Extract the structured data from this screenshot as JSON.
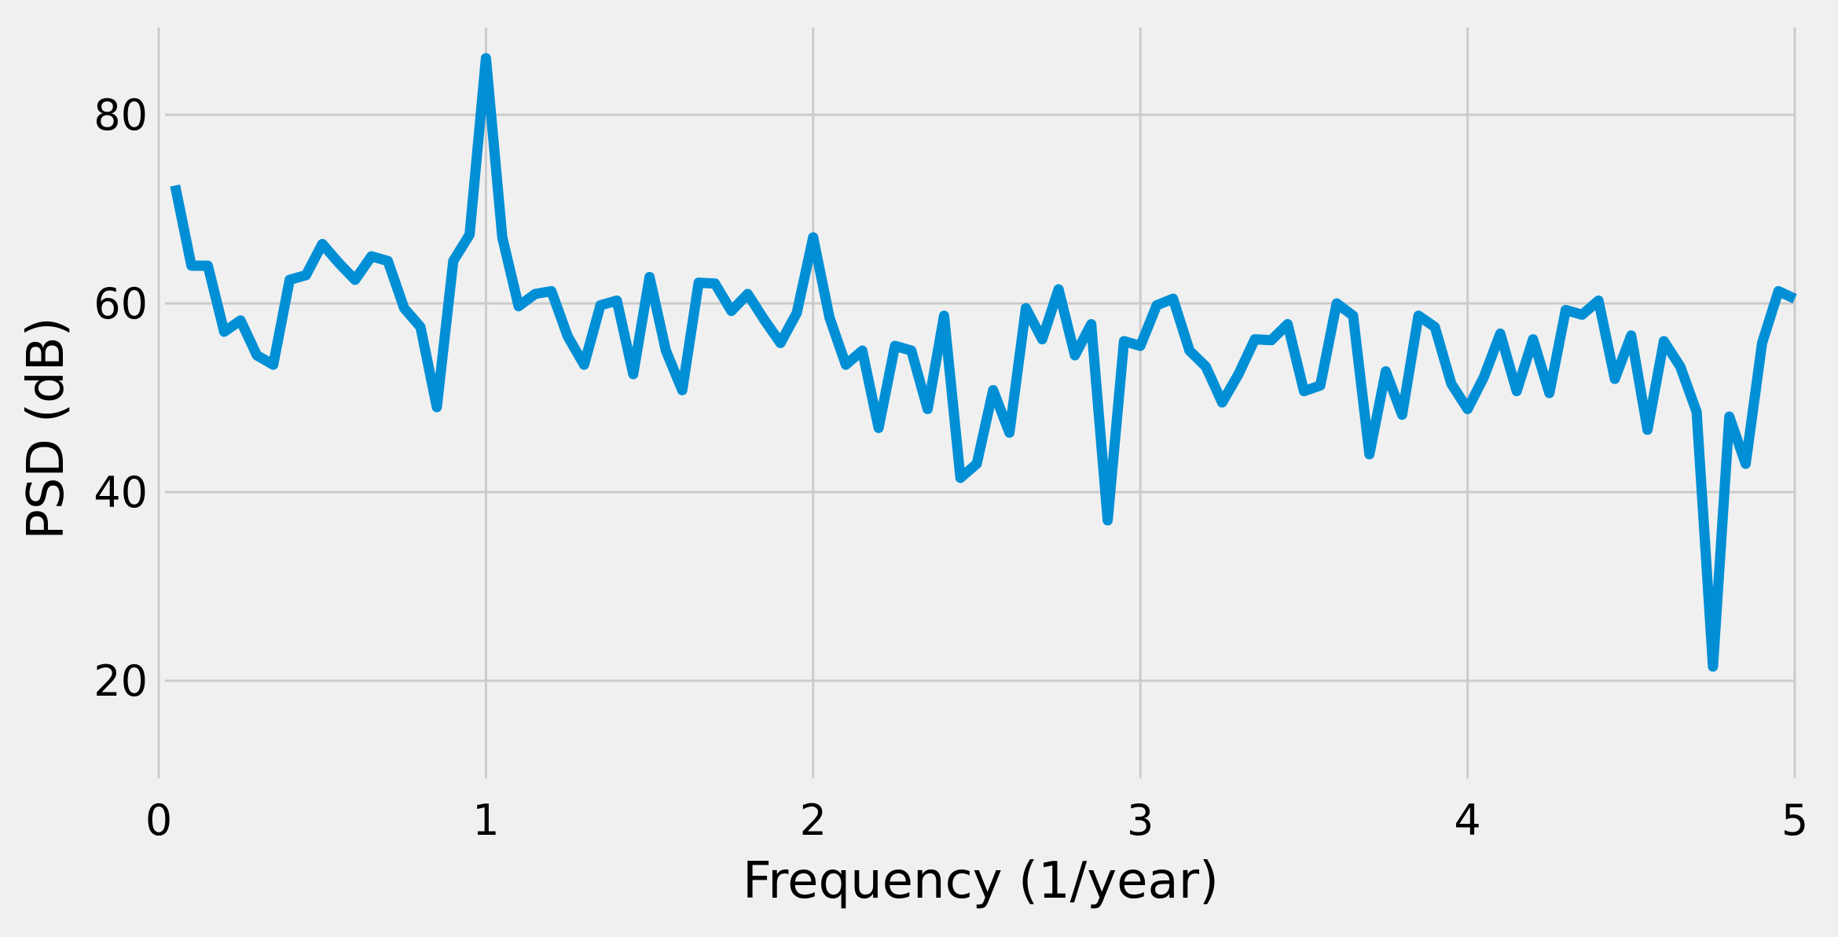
{
  "chart_data": {
    "type": "line",
    "title": "",
    "xlabel": "Frequency (1/year)",
    "ylabel": "PSD (dB)",
    "xlim": [
      0,
      5
    ],
    "ylim": [
      10,
      90
    ],
    "xticks": [
      0,
      1,
      2,
      3,
      4,
      5
    ],
    "xtick_labels": [
      "0",
      "1",
      "2",
      "3",
      "4",
      "5"
    ],
    "yticks": [
      20,
      40,
      60,
      80
    ],
    "ytick_labels": [
      "20",
      "40",
      "60",
      "80"
    ],
    "grid": true,
    "legend": "none",
    "background_color": "#f0f0f0",
    "grid_color": "#cbcbcb",
    "series": [
      {
        "color": "#008fd5",
        "x": [
          0.05,
          0.1,
          0.15,
          0.2,
          0.25,
          0.3,
          0.35,
          0.4,
          0.45,
          0.5,
          0.55,
          0.6,
          0.65,
          0.7,
          0.75,
          0.8,
          0.85,
          0.9,
          0.95,
          1.0,
          1.05,
          1.1,
          1.15,
          1.2,
          1.25,
          1.3,
          1.35,
          1.4,
          1.45,
          1.5,
          1.55,
          1.6,
          1.65,
          1.7,
          1.75,
          1.8,
          1.85,
          1.9,
          1.95,
          2.0,
          2.05,
          2.1,
          2.15,
          2.2,
          2.25,
          2.3,
          2.35,
          2.4,
          2.45,
          2.5,
          2.55,
          2.6,
          2.65,
          2.7,
          2.75,
          2.8,
          2.85,
          2.9,
          2.95,
          3.0,
          3.05,
          3.1,
          3.15,
          3.2,
          3.25,
          3.3,
          3.35,
          3.4,
          3.45,
          3.5,
          3.55,
          3.6,
          3.65,
          3.7,
          3.75,
          3.8,
          3.85,
          3.9,
          3.95,
          4.0,
          4.05,
          4.1,
          4.15,
          4.2,
          4.25,
          4.3,
          4.35,
          4.4,
          4.45,
          4.5,
          4.55,
          4.6,
          4.65,
          4.7,
          4.75,
          4.8,
          4.85,
          4.9,
          4.95,
          5.0
        ],
        "y": [
          72.5,
          64.0,
          64.0,
          57.0,
          58.2,
          54.5,
          53.5,
          62.5,
          63.0,
          66.3,
          64.3,
          62.5,
          65.0,
          64.5,
          59.5,
          57.5,
          49.0,
          64.5,
          67.3,
          86.0,
          67.0,
          59.7,
          61.0,
          61.3,
          56.5,
          53.5,
          59.8,
          60.3,
          52.5,
          62.8,
          55.0,
          50.8,
          62.2,
          62.1,
          59.2,
          61.0,
          58.3,
          55.8,
          59.0,
          67.0,
          58.5,
          53.5,
          55.0,
          46.8,
          55.5,
          55.0,
          48.8,
          58.7,
          41.5,
          43.0,
          50.8,
          46.3,
          59.5,
          56.2,
          61.5,
          54.5,
          57.8,
          37.0,
          56.0,
          55.5,
          59.8,
          60.5,
          55.0,
          53.3,
          49.5,
          52.5,
          56.2,
          56.1,
          57.8,
          50.7,
          51.3,
          60.0,
          58.7,
          44.0,
          52.8,
          48.2,
          58.7,
          57.5,
          51.5,
          48.8,
          52.2,
          56.8,
          50.7,
          56.2,
          50.5,
          59.3,
          58.8,
          60.3,
          52.0,
          56.6,
          46.6,
          56.0,
          53.3,
          48.5,
          21.5,
          48.0,
          43.0,
          55.8,
          61.3,
          60.5
        ]
      }
    ]
  }
}
